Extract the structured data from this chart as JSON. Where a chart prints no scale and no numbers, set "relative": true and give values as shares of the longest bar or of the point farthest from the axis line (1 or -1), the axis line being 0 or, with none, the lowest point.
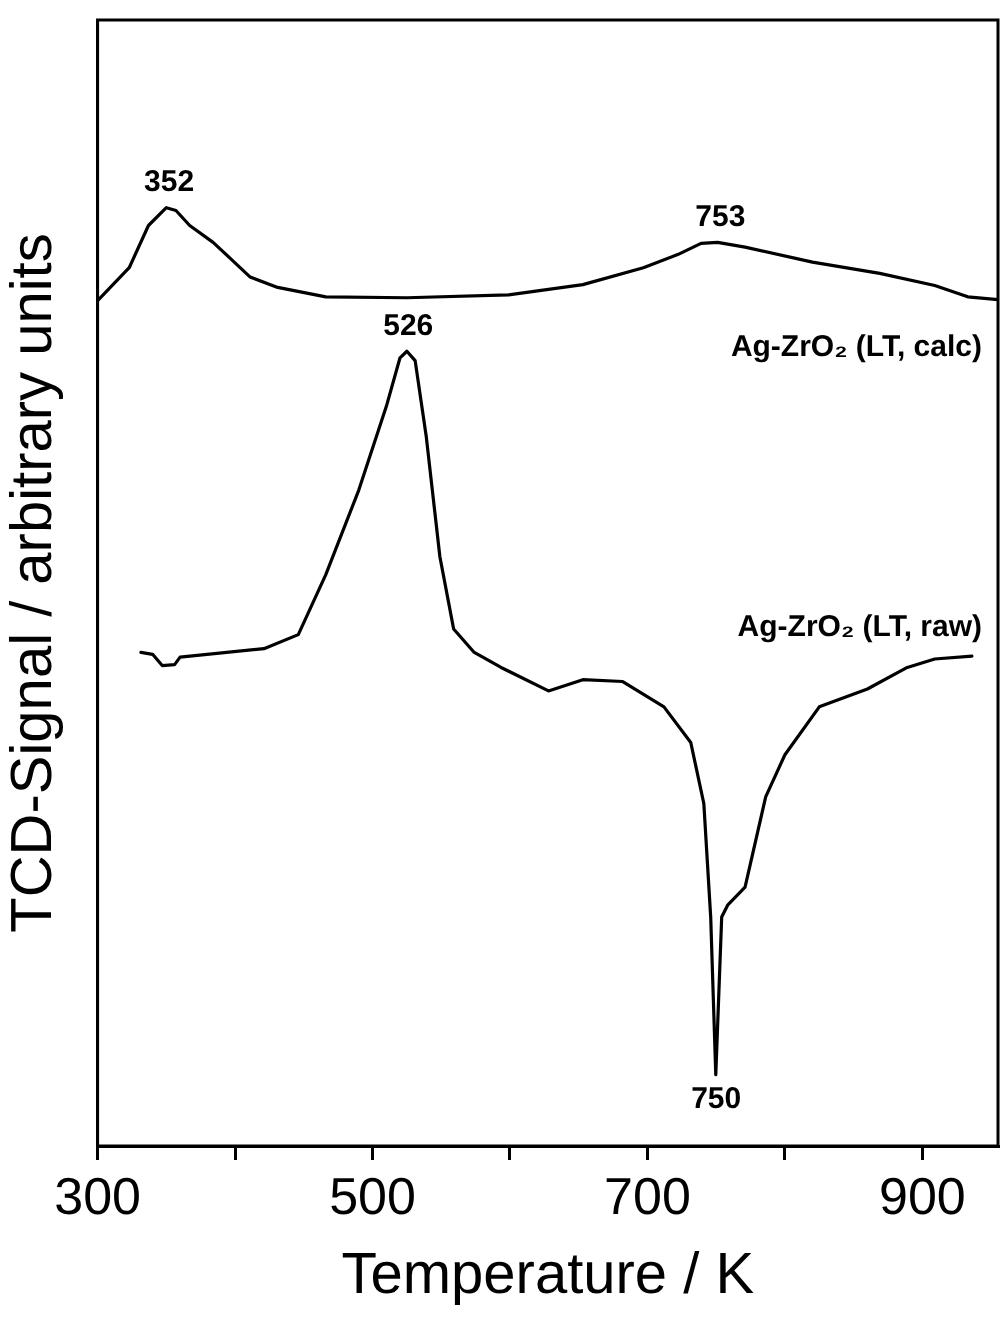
{
  "chart_data": {
    "type": "line",
    "relative": true,
    "xlabel": "Temperature / K",
    "ylabel": "TCD-Signal / arbitrary units",
    "xlim": [
      300,
      955
    ],
    "xticks": [
      300,
      {
        "value": 400,
        "label": null
      },
      500,
      {
        "value": 600,
        "label": null
      },
      700,
      {
        "value": 800,
        "label": null
      },
      900
    ],
    "grid": false,
    "legend": false,
    "marker": "none",
    "line_style": "solid",
    "series": [
      {
        "name": "Ag-ZrO₂ (LT, calc)",
        "color": "#000000",
        "x": [
          300,
          323,
          337,
          350,
          357,
          367,
          384,
          396.5,
          411,
          431,
          466,
          525,
          599,
          653,
          697,
          722,
          739,
          751,
          771,
          820,
          869,
          909,
          933,
          955
        ],
        "values": [
          0.901,
          0.936,
          0.981,
          1.0,
          0.997,
          0.981,
          0.963,
          0.946,
          0.926,
          0.915,
          0.905,
          0.904,
          0.907,
          0.918,
          0.936,
          0.95,
          0.962,
          0.963,
          0.958,
          0.942,
          0.93,
          0.917,
          0.905,
          0.902
        ]
      },
      {
        "name": "Ag-ZrO₂ (LT, raw)",
        "color": "#000000",
        "x": [
          331.5,
          340,
          347,
          356,
          360,
          421,
          446,
          466,
          490,
          510,
          520,
          525,
          531,
          539,
          549,
          559,
          574,
          593.5,
          628,
          653,
          682,
          712,
          731.5,
          741,
          746,
          749.7,
          754,
          758.5,
          771,
          786,
          800,
          825,
          860,
          889,
          909,
          936
        ],
        "values": [
          0.526,
          0.524,
          0.512,
          0.513,
          0.521,
          0.53,
          0.545,
          0.609,
          0.699,
          0.788,
          0.84,
          0.847,
          0.837,
          0.757,
          0.628,
          0.551,
          0.526,
          0.51,
          0.485,
          0.497,
          0.495,
          0.468,
          0.43,
          0.365,
          0.244,
          0.076,
          0.244,
          0.257,
          0.276,
          0.372,
          0.417,
          0.468,
          0.487,
          0.51,
          0.519,
          0.522
        ]
      }
    ],
    "annotations": [
      {
        "text": "352",
        "x": 352,
        "y": 1.0
      },
      {
        "text": "753",
        "x": 753,
        "y": 0.963
      },
      {
        "text": "526",
        "x": 526,
        "y": 0.847
      },
      {
        "text": "750",
        "x": 750,
        "y": 0.076
      }
    ]
  }
}
